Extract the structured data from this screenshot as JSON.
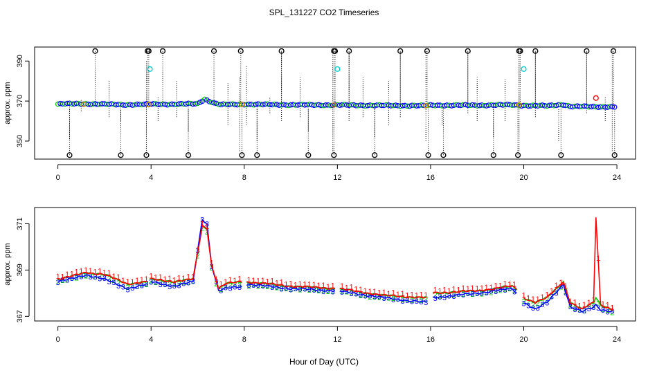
{
  "title": "SPL_131227  CO2 Timeseries",
  "xlabel": "Hour of Day (UTC)",
  "colors": {
    "axis": "#000000",
    "series1": "#ff0000",
    "series2": "#00cc00",
    "series3": "#0000ff",
    "marker_cyan": "#00cccc",
    "marker_black": "#000000",
    "marker_orange": "#cc8800",
    "marker_red": "#ff0000"
  },
  "chart_data": [
    {
      "type": "scatter",
      "panel": "top",
      "ylabel": "approx. ppm",
      "xlim": [
        -1,
        24.8
      ],
      "ylim": [
        341,
        397
      ],
      "xticks": [
        0,
        4,
        8,
        12,
        16,
        20,
        24
      ],
      "xtick_labels": [
        "0",
        "4",
        "8",
        "12",
        "16",
        "20",
        "24"
      ],
      "yticks": [
        350,
        370,
        390
      ],
      "ytick_labels": [
        "350",
        "370",
        "390"
      ],
      "baseline_anchors": [
        [
          0,
          368.5
        ],
        [
          1,
          368.7
        ],
        [
          2,
          368.4
        ],
        [
          3,
          368.2
        ],
        [
          3.9,
          368.3
        ],
        [
          4,
          368.5
        ],
        [
          5,
          368.4
        ],
        [
          6,
          368.7
        ],
        [
          6.3,
          371
        ],
        [
          6.7,
          369
        ],
        [
          7,
          368.2
        ],
        [
          8,
          368.4
        ],
        [
          10,
          368.1
        ],
        [
          12,
          368
        ],
        [
          14,
          367.8
        ],
        [
          15.8,
          367.7
        ],
        [
          16,
          367.9
        ],
        [
          18,
          367.9
        ],
        [
          19.5,
          368.1
        ],
        [
          20,
          367.8
        ],
        [
          21,
          367.6
        ],
        [
          21.7,
          368.3
        ],
        [
          22,
          367.3
        ],
        [
          23,
          367.2
        ],
        [
          24,
          367.1
        ]
      ],
      "outliers_high": [
        1.6,
        3.85,
        3.9,
        4.5,
        6.7,
        7.85,
        9.6,
        11.85,
        11.9,
        12.5,
        14.7,
        15.85,
        17.6,
        19.8,
        19.85,
        20.5,
        22.7,
        23.85
      ],
      "outlier_high_value": 395,
      "outliers_low": [
        0.5,
        2.7,
        3.8,
        5.6,
        7.9,
        8.55,
        10.75,
        11.85,
        13.6,
        15.9,
        16.55,
        18.7,
        19.75,
        21.6,
        23.9
      ],
      "outlier_low_value": 343,
      "cyan_markers": [
        [
          3.95,
          386
        ],
        [
          12.0,
          386
        ],
        [
          20.0,
          386
        ]
      ],
      "red_marker": [
        23.1,
        371.5
      ],
      "orange_markers": [
        [
          1.1,
          368.4
        ],
        [
          3.9,
          368.2
        ],
        [
          7.9,
          368.4
        ],
        [
          11.85,
          368
        ],
        [
          15.8,
          367.7
        ],
        [
          19.8,
          368.1
        ]
      ],
      "whiskers": [
        [
          0.5,
          351,
          366
        ],
        [
          1.0,
          365,
          371
        ],
        [
          2.2,
          362,
          380
        ],
        [
          2.7,
          360,
          366
        ],
        [
          3.8,
          347,
          390
        ],
        [
          4.3,
          360,
          372
        ],
        [
          5.1,
          362,
          380
        ],
        [
          5.6,
          355,
          366
        ],
        [
          7.3,
          358,
          379
        ],
        [
          7.8,
          345,
          382
        ],
        [
          8.1,
          358,
          388
        ],
        [
          8.55,
          350,
          366
        ],
        [
          9.1,
          364,
          372
        ],
        [
          9.6,
          360,
          395
        ],
        [
          10.4,
          362,
          382
        ],
        [
          10.75,
          355,
          366
        ],
        [
          11.8,
          345,
          395
        ],
        [
          12.5,
          360,
          395
        ],
        [
          13.1,
          362,
          382
        ],
        [
          13.6,
          352,
          366
        ],
        [
          14.2,
          358,
          380
        ],
        [
          14.7,
          362,
          395
        ],
        [
          15.8,
          350,
          395
        ],
        [
          16.5,
          358,
          366
        ],
        [
          17.6,
          364,
          395
        ],
        [
          18.0,
          360,
          382
        ],
        [
          18.7,
          352,
          366
        ],
        [
          19.2,
          360,
          381
        ],
        [
          19.8,
          345,
          395
        ],
        [
          20.5,
          362,
          395
        ],
        [
          21.5,
          350,
          366
        ],
        [
          22.7,
          364,
          395
        ],
        [
          23.5,
          360,
          372
        ],
        [
          23.8,
          345,
          395
        ]
      ]
    },
    {
      "type": "line",
      "panel": "bottom",
      "ylabel": "approx. ppm",
      "xlim": [
        -1,
        24.8
      ],
      "ylim": [
        366.8,
        371.7
      ],
      "xticks": [
        0,
        4,
        8,
        12,
        16,
        20,
        24
      ],
      "xtick_labels": [
        "0",
        "4",
        "8",
        "12",
        "16",
        "20",
        "24"
      ],
      "yticks": [
        367,
        369,
        371
      ],
      "ytick_labels": [
        "367",
        "369",
        "371"
      ],
      "gaps": [
        [
          3.9,
          4.0
        ],
        [
          7.9,
          8.0
        ],
        [
          11.9,
          12.0
        ],
        [
          15.8,
          16.0
        ],
        [
          19.8,
          20.0
        ]
      ],
      "series": [
        {
          "name": "1",
          "marker": "1",
          "offset": 0.12,
          "anchors": [
            [
              0,
              368.6
            ],
            [
              0.5,
              368.7
            ],
            [
              1.2,
              368.9
            ],
            [
              2,
              368.8
            ],
            [
              3,
              368.4
            ],
            [
              3.9,
              368.5
            ],
            [
              4,
              368.6
            ],
            [
              5,
              368.5
            ],
            [
              5.8,
              368.6
            ],
            [
              6.2,
              370.9
            ],
            [
              6.4,
              370.8
            ],
            [
              6.6,
              369.2
            ],
            [
              6.9,
              368.2
            ],
            [
              7.2,
              368.4
            ],
            [
              7.9,
              368.5
            ],
            [
              8,
              368.5
            ],
            [
              10,
              368.3
            ],
            [
              12,
              368.2
            ],
            [
              14,
              367.9
            ],
            [
              15.8,
              367.8
            ],
            [
              16,
              368
            ],
            [
              18,
              368.1
            ],
            [
              19.5,
              368.3
            ],
            [
              19.8,
              368.1
            ],
            [
              20,
              367.8
            ],
            [
              20.5,
              367.6
            ],
            [
              21,
              367.8
            ],
            [
              21.7,
              368.5
            ],
            [
              22,
              367.6
            ],
            [
              22.5,
              367.3
            ],
            [
              23,
              367.6
            ],
            [
              23.1,
              371.3
            ],
            [
              23.3,
              367.5
            ],
            [
              23.8,
              367.3
            ]
          ]
        },
        {
          "name": "2",
          "marker": "2",
          "offset": -0.1,
          "anchors": [
            [
              0,
              368.6
            ],
            [
              0.5,
              368.7
            ],
            [
              1.2,
              368.9
            ],
            [
              2,
              368.8
            ],
            [
              3,
              368.4
            ],
            [
              3.9,
              368.5
            ],
            [
              4,
              368.6
            ],
            [
              5,
              368.5
            ],
            [
              5.8,
              368.6
            ],
            [
              6.2,
              370.9
            ],
            [
              6.4,
              370.8
            ],
            [
              6.6,
              369.2
            ],
            [
              6.9,
              368.2
            ],
            [
              7.2,
              368.4
            ],
            [
              7.9,
              368.5
            ],
            [
              8,
              368.5
            ],
            [
              10,
              368.3
            ],
            [
              12,
              368.2
            ],
            [
              14,
              367.9
            ],
            [
              15.8,
              367.8
            ],
            [
              16,
              368
            ],
            [
              18,
              368.1
            ],
            [
              19.5,
              368.3
            ],
            [
              19.8,
              368.1
            ],
            [
              20,
              367.8
            ],
            [
              20.5,
              367.6
            ],
            [
              21,
              367.8
            ],
            [
              21.7,
              368.5
            ],
            [
              22,
              367.6
            ],
            [
              22.5,
              367.3
            ],
            [
              23,
              367.6
            ],
            [
              23.1,
              367.8
            ],
            [
              23.3,
              367.5
            ],
            [
              23.8,
              367.3
            ]
          ]
        },
        {
          "name": "3",
          "marker": "3",
          "offset": 0,
          "anchors": [
            [
              0,
              368.5
            ],
            [
              0.5,
              368.6
            ],
            [
              1.2,
              368.8
            ],
            [
              2,
              368.6
            ],
            [
              3,
              368.2
            ],
            [
              3.9,
              368.4
            ],
            [
              4,
              368.5
            ],
            [
              5,
              368.3
            ],
            [
              5.8,
              368.5
            ],
            [
              6.2,
              371.2
            ],
            [
              6.4,
              371
            ],
            [
              6.6,
              369.2
            ],
            [
              6.9,
              368.1
            ],
            [
              7.2,
              368.2
            ],
            [
              7.9,
              368.3
            ],
            [
              8,
              368.4
            ],
            [
              10,
              368.2
            ],
            [
              12,
              368.1
            ],
            [
              14,
              367.8
            ],
            [
              15.8,
              367.6
            ],
            [
              16,
              367.8
            ],
            [
              18,
              368
            ],
            [
              19.5,
              368.2
            ],
            [
              19.8,
              367.9
            ],
            [
              20,
              367.6
            ],
            [
              20.5,
              367.3
            ],
            [
              21,
              367.6
            ],
            [
              21.7,
              368.4
            ],
            [
              22,
              367.4
            ],
            [
              22.5,
              367.2
            ],
            [
              23,
              367.4
            ],
            [
              23.1,
              367.5
            ],
            [
              23.3,
              367.3
            ],
            [
              23.8,
              367.2
            ]
          ]
        }
      ]
    }
  ]
}
